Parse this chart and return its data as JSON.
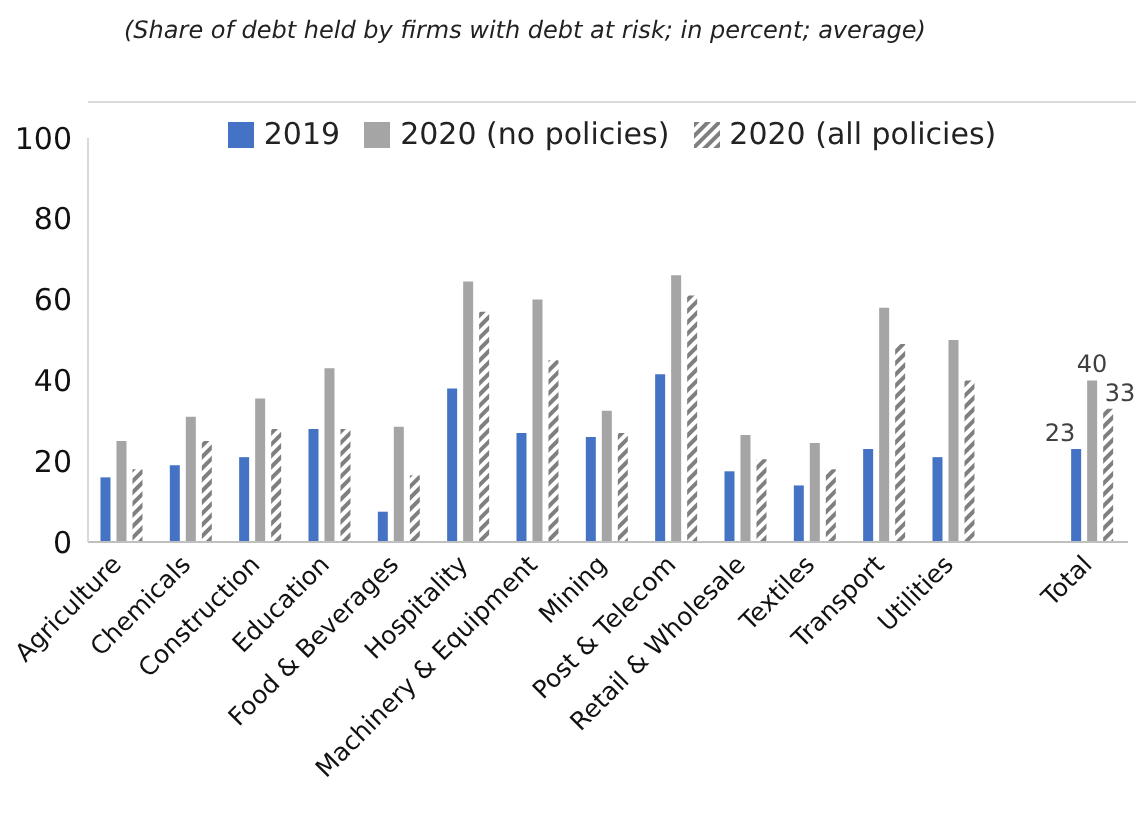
{
  "chart_data": {
    "type": "bar",
    "title": "(Share of debt held by firms with debt at risk; in percent; average)",
    "categories": [
      "Agriculture",
      "Chemicals",
      "Construction",
      "Education",
      "Food & Beverages",
      "Hospitality",
      "Machinery & Equipment",
      "Mining",
      "Post & Telecom",
      "Retail & Wholesale",
      "Textiles",
      "Transport",
      "Utilities",
      null,
      "Total"
    ],
    "series": [
      {
        "name": "2019",
        "color": "#4472c4",
        "values": [
          16,
          19,
          21,
          28,
          7.5,
          38,
          27,
          26,
          41.5,
          17.5,
          14,
          23,
          21,
          null,
          23
        ],
        "value_labels": [
          null,
          null,
          null,
          null,
          null,
          null,
          null,
          null,
          null,
          null,
          null,
          null,
          null,
          null,
          "23"
        ]
      },
      {
        "name": "2020 (no policies)",
        "color": "#a5a5a5",
        "values": [
          25,
          31,
          35.5,
          43,
          28.5,
          64.5,
          60,
          32.5,
          66,
          26.5,
          24.5,
          58,
          50,
          null,
          40
        ],
        "value_labels": [
          null,
          null,
          null,
          null,
          null,
          null,
          null,
          null,
          null,
          null,
          null,
          null,
          null,
          null,
          "40"
        ]
      },
      {
        "name": "2020 (all policies)",
        "color": "#7f7f7f",
        "values": [
          18,
          25,
          28,
          28,
          16.5,
          57,
          45,
          27,
          61,
          20.5,
          18,
          49,
          40,
          null,
          33
        ],
        "value_labels": [
          null,
          null,
          null,
          null,
          null,
          null,
          null,
          null,
          null,
          null,
          null,
          null,
          null,
          null,
          "33"
        ]
      }
    ],
    "ylim": [
      0,
      100
    ],
    "yticks": [
      0,
      20,
      40,
      60,
      80,
      100
    ],
    "grid": false,
    "legend": "top"
  }
}
